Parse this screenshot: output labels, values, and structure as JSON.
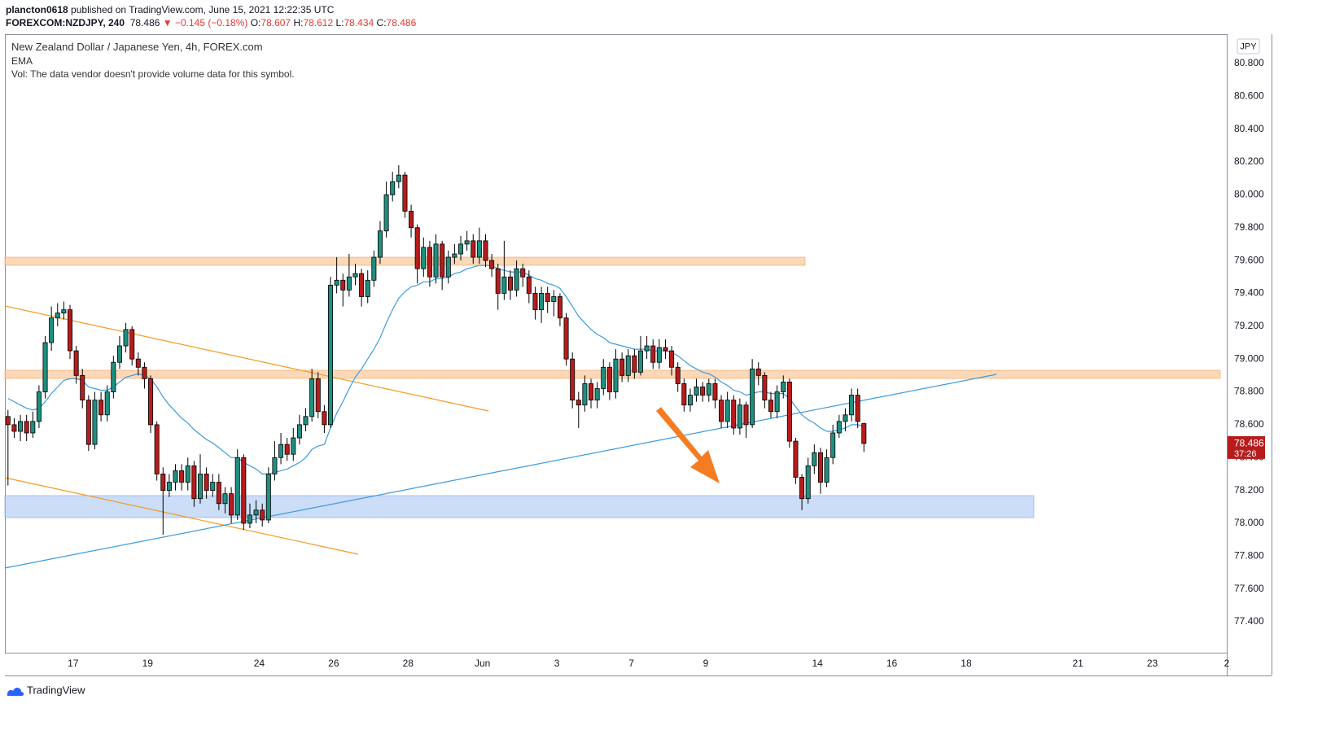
{
  "header": {
    "publisher": "plancton0618",
    "published_text": "published on TradingView.com, June 15, 2021 12:22:35 UTC",
    "symbol": "FOREXCOM:NZDJPY, 240",
    "change": "▼ −0.145 (−0.18%)",
    "ohlc_labels": [
      "O:",
      "H:",
      "L:",
      "C:"
    ]
  },
  "footer": {
    "brand": "TradingView"
  },
  "chart_data": {
    "type": "candlestick",
    "title": "New Zealand Dollar / Japanese Yen, 4h, FOREX.com",
    "indicator": "EMA",
    "volume_note": "Vol: The data vendor doesn't provide volume data for this symbol.",
    "currency": "JPY",
    "countdown": "37:26",
    "up_color": "#1f8f80",
    "down_color": "#b71c1c",
    "wick_color": "#000000",
    "xlim": [
      0,
      197
    ],
    "xticks": [
      {
        "value": 11,
        "label": "17"
      },
      {
        "value": 23,
        "label": "19"
      },
      {
        "value": 41,
        "label": "24"
      },
      {
        "value": 53,
        "label": "26"
      },
      {
        "value": 65,
        "label": "28"
      },
      {
        "value": 77,
        "label": "Jun"
      },
      {
        "value": 89,
        "label": "3"
      },
      {
        "value": 101,
        "label": "7"
      },
      {
        "value": 113,
        "label": "9"
      },
      {
        "value": 131,
        "label": "14"
      },
      {
        "value": 143,
        "label": "16"
      },
      {
        "value": 155,
        "label": "18"
      },
      {
        "value": 173,
        "label": "21"
      },
      {
        "value": 185,
        "label": "23"
      },
      {
        "value": 197,
        "label": "2"
      }
    ],
    "ylim": [
      77.212,
      80.978
    ],
    "yticks": [
      {
        "value": 80.8,
        "label": "80.800"
      },
      {
        "value": 80.6,
        "label": "80.600"
      },
      {
        "value": 80.4,
        "label": "80.400"
      },
      {
        "value": 80.2,
        "label": "80.200"
      },
      {
        "value": 80.0,
        "label": "80.000"
      },
      {
        "value": 79.8,
        "label": "79.800"
      },
      {
        "value": 79.6,
        "label": "79.600"
      },
      {
        "value": 79.4,
        "label": "79.400"
      },
      {
        "value": 79.2,
        "label": "79.200"
      },
      {
        "value": 79.0,
        "label": "79.000"
      },
      {
        "value": 78.8,
        "label": "78.800"
      },
      {
        "value": 78.6,
        "label": "78.600"
      },
      {
        "value": 78.4,
        "label": "78.400"
      },
      {
        "value": 78.2,
        "label": "78.200"
      },
      {
        "value": 78.0,
        "label": "78.000"
      },
      {
        "value": 77.8,
        "label": "77.800"
      },
      {
        "value": 77.6,
        "label": "77.600"
      },
      {
        "value": 77.4,
        "label": "77.400"
      }
    ],
    "grid": false,
    "ohlc": [
      [
        78.65,
        78.69,
        78.23,
        78.6
      ],
      [
        78.6,
        78.64,
        78.52,
        78.56
      ],
      [
        78.56,
        78.66,
        78.5,
        78.62
      ],
      [
        78.62,
        78.66,
        78.5,
        78.55
      ],
      [
        78.55,
        78.68,
        78.52,
        78.62
      ],
      [
        78.62,
        78.84,
        78.58,
        78.8
      ],
      [
        78.8,
        79.14,
        78.76,
        79.1
      ],
      [
        79.1,
        79.32,
        79.05,
        79.25
      ],
      [
        79.25,
        79.34,
        79.2,
        79.28
      ],
      [
        79.28,
        79.35,
        79.24,
        79.3
      ],
      [
        79.3,
        79.33,
        79.0,
        79.05
      ],
      [
        79.05,
        79.08,
        78.85,
        78.9
      ],
      [
        78.9,
        78.94,
        78.7,
        78.75
      ],
      [
        78.75,
        78.78,
        78.44,
        78.48
      ],
      [
        78.48,
        78.8,
        78.45,
        78.75
      ],
      [
        78.75,
        78.8,
        78.62,
        78.66
      ],
      [
        78.66,
        78.84,
        78.62,
        78.8
      ],
      [
        78.8,
        79.02,
        78.76,
        78.98
      ],
      [
        78.98,
        79.14,
        78.94,
        79.08
      ],
      [
        79.08,
        79.22,
        79.04,
        79.18
      ],
      [
        79.18,
        79.2,
        78.96,
        79.0
      ],
      [
        79.0,
        79.04,
        78.9,
        78.95
      ],
      [
        78.95,
        78.98,
        78.82,
        78.88
      ],
      [
        78.88,
        78.9,
        78.55,
        78.6
      ],
      [
        78.6,
        78.62,
        78.26,
        78.3
      ],
      [
        78.3,
        78.34,
        77.93,
        78.2
      ],
      [
        78.2,
        78.3,
        78.16,
        78.25
      ],
      [
        78.25,
        78.36,
        78.2,
        78.32
      ],
      [
        78.32,
        78.36,
        78.2,
        78.25
      ],
      [
        78.25,
        78.4,
        78.2,
        78.35
      ],
      [
        78.35,
        78.38,
        78.1,
        78.15
      ],
      [
        78.15,
        78.42,
        78.12,
        78.3
      ],
      [
        78.3,
        78.34,
        78.15,
        78.2
      ],
      [
        78.2,
        78.3,
        78.16,
        78.25
      ],
      [
        78.25,
        78.3,
        78.08,
        78.12
      ],
      [
        78.12,
        78.22,
        78.06,
        78.18
      ],
      [
        78.18,
        78.22,
        78.0,
        78.05
      ],
      [
        78.05,
        78.45,
        78.02,
        78.4
      ],
      [
        78.4,
        78.42,
        77.96,
        78.0
      ],
      [
        78.0,
        78.12,
        77.97,
        78.05
      ],
      [
        78.05,
        78.14,
        78.0,
        78.08
      ],
      [
        78.08,
        78.12,
        77.98,
        78.02
      ],
      [
        78.02,
        78.34,
        78.0,
        78.3
      ],
      [
        78.3,
        78.5,
        78.26,
        78.4
      ],
      [
        78.4,
        78.55,
        78.36,
        78.48
      ],
      [
        78.48,
        78.52,
        78.38,
        78.42
      ],
      [
        78.42,
        78.58,
        78.38,
        78.52
      ],
      [
        78.52,
        78.66,
        78.48,
        78.6
      ],
      [
        78.6,
        78.7,
        78.56,
        78.65
      ],
      [
        78.65,
        78.94,
        78.62,
        78.88
      ],
      [
        78.88,
        78.92,
        78.64,
        78.68
      ],
      [
        78.68,
        78.72,
        78.55,
        78.6
      ],
      [
        78.6,
        79.5,
        78.58,
        79.45
      ],
      [
        79.45,
        79.62,
        79.4,
        79.48
      ],
      [
        79.48,
        79.52,
        79.32,
        79.42
      ],
      [
        79.42,
        79.64,
        79.38,
        79.5
      ],
      [
        79.5,
        79.58,
        79.45,
        79.52
      ],
      [
        79.52,
        79.55,
        79.32,
        79.38
      ],
      [
        79.38,
        79.54,
        79.34,
        79.48
      ],
      [
        79.48,
        79.66,
        79.44,
        79.62
      ],
      [
        79.62,
        79.84,
        79.58,
        79.78
      ],
      [
        79.78,
        80.08,
        79.74,
        80.0
      ],
      [
        80.0,
        80.14,
        79.96,
        80.08
      ],
      [
        80.08,
        80.18,
        80.04,
        80.12
      ],
      [
        80.12,
        80.14,
        79.86,
        79.9
      ],
      [
        79.9,
        79.94,
        79.74,
        79.8
      ],
      [
        79.8,
        79.82,
        79.46,
        79.55
      ],
      [
        79.55,
        79.74,
        79.5,
        79.68
      ],
      [
        79.68,
        79.72,
        79.44,
        79.5
      ],
      [
        79.5,
        79.76,
        79.46,
        79.7
      ],
      [
        79.7,
        79.72,
        79.42,
        79.5
      ],
      [
        79.5,
        79.66,
        79.46,
        79.62
      ],
      [
        79.62,
        79.7,
        79.58,
        79.64
      ],
      [
        79.64,
        79.75,
        79.6,
        79.7
      ],
      [
        79.7,
        79.78,
        79.66,
        79.72
      ],
      [
        79.72,
        79.76,
        79.58,
        79.62
      ],
      [
        79.62,
        79.8,
        79.58,
        79.72
      ],
      [
        79.72,
        79.76,
        79.56,
        79.6
      ],
      [
        79.6,
        79.64,
        79.5,
        79.55
      ],
      [
        79.55,
        79.58,
        79.3,
        79.4
      ],
      [
        79.4,
        79.72,
        79.36,
        79.5
      ],
      [
        79.5,
        79.54,
        79.36,
        79.42
      ],
      [
        79.42,
        79.6,
        79.38,
        79.55
      ],
      [
        79.55,
        79.58,
        79.44,
        79.5
      ],
      [
        79.5,
        79.54,
        79.34,
        79.4
      ],
      [
        79.4,
        79.44,
        79.24,
        79.3
      ],
      [
        79.3,
        79.44,
        79.22,
        79.4
      ],
      [
        79.4,
        79.44,
        79.28,
        79.35
      ],
      [
        79.35,
        79.42,
        79.26,
        79.38
      ],
      [
        79.38,
        79.4,
        79.2,
        79.25
      ],
      [
        79.25,
        79.28,
        78.96,
        79.0
      ],
      [
        79.0,
        79.04,
        78.7,
        78.75
      ],
      [
        78.75,
        78.8,
        78.58,
        78.72
      ],
      [
        78.72,
        78.9,
        78.68,
        78.85
      ],
      [
        78.85,
        78.88,
        78.7,
        78.75
      ],
      [
        78.75,
        78.86,
        78.7,
        78.82
      ],
      [
        78.82,
        79.0,
        78.78,
        78.95
      ],
      [
        78.95,
        78.98,
        78.75,
        78.8
      ],
      [
        78.8,
        79.06,
        78.76,
        79.0
      ],
      [
        79.0,
        79.04,
        78.86,
        78.9
      ],
      [
        78.9,
        79.06,
        78.86,
        79.02
      ],
      [
        79.02,
        79.06,
        78.88,
        78.92
      ],
      [
        78.92,
        79.14,
        78.9,
        79.05
      ],
      [
        79.05,
        79.14,
        79.0,
        79.08
      ],
      [
        79.08,
        79.12,
        78.94,
        78.98
      ],
      [
        78.98,
        79.12,
        78.94,
        79.07
      ],
      [
        79.07,
        79.12,
        79.0,
        79.05
      ],
      [
        79.05,
        79.08,
        78.9,
        78.95
      ],
      [
        78.95,
        78.98,
        78.8,
        78.85
      ],
      [
        78.85,
        78.88,
        78.68,
        78.72
      ],
      [
        78.72,
        78.82,
        78.68,
        78.78
      ],
      [
        78.78,
        78.88,
        78.74,
        78.83
      ],
      [
        78.83,
        78.86,
        78.74,
        78.78
      ],
      [
        78.78,
        78.88,
        78.74,
        78.85
      ],
      [
        78.85,
        78.88,
        78.7,
        78.75
      ],
      [
        78.75,
        78.78,
        78.58,
        78.62
      ],
      [
        78.62,
        78.8,
        78.58,
        78.75
      ],
      [
        78.75,
        78.78,
        78.54,
        78.58
      ],
      [
        78.58,
        78.76,
        78.54,
        78.72
      ],
      [
        78.72,
        78.74,
        78.52,
        78.6
      ],
      [
        78.6,
        79.0,
        78.58,
        78.94
      ],
      [
        78.94,
        78.98,
        78.84,
        78.9
      ],
      [
        78.9,
        78.92,
        78.7,
        78.75
      ],
      [
        78.75,
        78.8,
        78.64,
        78.68
      ],
      [
        78.68,
        78.84,
        78.64,
        78.8
      ],
      [
        78.8,
        78.9,
        78.76,
        78.86
      ],
      [
        78.86,
        78.88,
        78.46,
        78.5
      ],
      [
        78.5,
        78.52,
        78.24,
        78.28
      ],
      [
        78.28,
        78.3,
        78.08,
        78.15
      ],
      [
        78.15,
        78.4,
        78.12,
        78.35
      ],
      [
        78.35,
        78.48,
        78.3,
        78.43
      ],
      [
        78.43,
        78.46,
        78.18,
        78.25
      ],
      [
        78.25,
        78.45,
        78.22,
        78.4
      ],
      [
        78.4,
        78.6,
        78.36,
        78.55
      ],
      [
        78.55,
        78.66,
        78.52,
        78.62
      ],
      [
        78.62,
        78.7,
        78.56,
        78.66
      ],
      [
        78.66,
        78.82,
        78.62,
        78.78
      ],
      [
        78.78,
        78.82,
        78.58,
        78.62
      ],
      [
        78.607,
        78.612,
        78.434,
        78.486
      ]
    ],
    "ema": {
      "name": "EMA",
      "color": "#3d9be0",
      "values": [
        78.76,
        78.74,
        78.72,
        78.7,
        78.69,
        78.7,
        78.74,
        78.79,
        78.83,
        78.87,
        78.88,
        78.88,
        78.87,
        78.83,
        78.82,
        78.81,
        78.81,
        78.83,
        78.86,
        78.89,
        78.9,
        78.91,
        78.9,
        78.88,
        78.83,
        78.77,
        78.72,
        78.68,
        78.64,
        78.61,
        78.57,
        78.54,
        78.51,
        78.49,
        78.46,
        78.43,
        78.4,
        78.4,
        78.37,
        78.35,
        78.33,
        78.3,
        78.3,
        78.31,
        78.32,
        78.33,
        78.35,
        78.37,
        78.4,
        78.45,
        78.47,
        78.48,
        78.58,
        78.67,
        78.74,
        78.82,
        78.89,
        78.94,
        79.0,
        79.06,
        79.13,
        79.22,
        79.3,
        79.37,
        79.41,
        79.44,
        79.45,
        79.47,
        79.47,
        79.49,
        79.49,
        79.5,
        79.52,
        79.53,
        79.55,
        79.56,
        79.57,
        79.57,
        79.57,
        79.55,
        79.54,
        79.53,
        79.53,
        79.53,
        79.51,
        79.49,
        79.48,
        79.46,
        79.45,
        79.43,
        79.38,
        79.32,
        79.26,
        79.22,
        79.18,
        79.15,
        79.13,
        79.1,
        79.09,
        79.08,
        79.07,
        79.06,
        79.06,
        79.06,
        79.05,
        79.05,
        79.05,
        79.04,
        79.02,
        78.99,
        78.96,
        78.94,
        78.92,
        78.91,
        78.89,
        78.86,
        78.84,
        78.81,
        78.8,
        78.78,
        78.79,
        78.8,
        78.8,
        78.79,
        78.79,
        78.79,
        78.76,
        78.71,
        78.66,
        78.63,
        78.61,
        78.58,
        78.56,
        78.56,
        78.57,
        78.58,
        78.6,
        78.6,
        78.59
      ]
    }
  }
}
